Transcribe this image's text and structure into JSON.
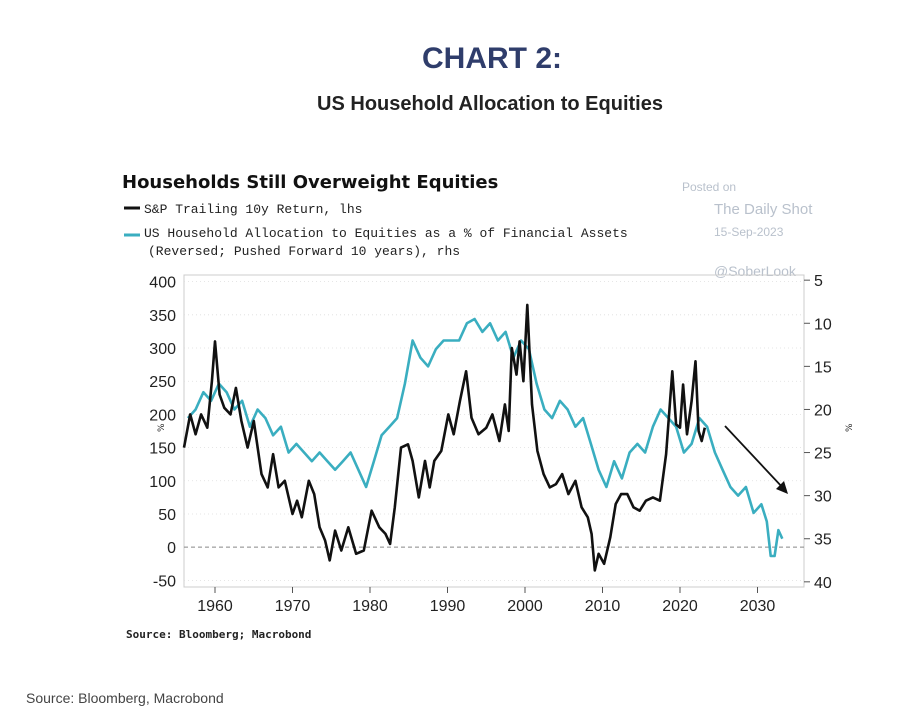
{
  "header": {
    "label": "CHART 2:",
    "title": "US Household Allocation to Equities"
  },
  "footer": {
    "source": "Source: Bloomberg, Macrobond"
  },
  "watermark": {
    "posted_on": "Posted on",
    "site": "The Daily Shot",
    "date": "15-Sep-2023",
    "handle": "@SoberLook"
  },
  "colors": {
    "lhs_series": "#111111",
    "rhs_series": "#3aaec0",
    "annotation": "#111111"
  },
  "chart_data": {
    "type": "line",
    "title": "Households Still Overweight Equities",
    "source": "Source: Bloomberg; Macrobond",
    "legend": [
      "S&P Trailing 10y Return, lhs",
      "US Household Allocation to Equities as a % of Financial Assets",
      "(Reversed; Pushed Forward 10 years), rhs"
    ],
    "legend_placement": "top-left",
    "xlabel": "",
    "ylabel": "%",
    "y2label": "%",
    "xlim": [
      1956,
      2036
    ],
    "ylim": [
      -60,
      410
    ],
    "y2lim": [
      4.4,
      40.6
    ],
    "y2_reversed": true,
    "x_ticks": [
      1960,
      1970,
      1980,
      1990,
      2000,
      2010,
      2020,
      2030
    ],
    "y_ticks": [
      -50,
      0,
      50,
      100,
      150,
      200,
      250,
      300,
      350,
      400
    ],
    "y2_ticks": [
      5,
      10,
      15,
      20,
      25,
      30,
      35,
      40
    ],
    "grid": "horizontal dotted",
    "zero_line": "dashed at 0",
    "annotation": "downward arrow from 2027 to 2036",
    "series": [
      {
        "name": "S&P Trailing 10y Return, lhs",
        "axis": "left",
        "x": [
          1956,
          1956.8,
          1957.5,
          1958.2,
          1959,
          1959.6,
          1960,
          1960.6,
          1961.2,
          1962,
          1962.7,
          1963.4,
          1964.2,
          1965,
          1966,
          1966.8,
          1967.5,
          1968.2,
          1969,
          1970,
          1970.6,
          1971.2,
          1972.1,
          1972.8,
          1973.5,
          1974.2,
          1974.8,
          1975.5,
          1976.3,
          1977.2,
          1978.2,
          1979.2,
          1980.2,
          1981.2,
          1982,
          1982.6,
          1983.2,
          1984,
          1984.9,
          1985.5,
          1986.3,
          1987.1,
          1987.7,
          1988.3,
          1989.2,
          1990.1,
          1990.8,
          1991.6,
          1992.4,
          1993.1,
          1994,
          1995,
          1995.8,
          1996.7,
          1997.4,
          1997.9,
          1998.3,
          1998.9,
          1999.3,
          1999.8,
          2000.3,
          2000.9,
          2001.6,
          2002.4,
          2003.2,
          2004,
          2004.8,
          2005.6,
          2006.5,
          2007.3,
          2008.1,
          2008.6,
          2009,
          2009.5,
          2010.2,
          2011,
          2011.7,
          2012.4,
          2013.2,
          2014,
          2014.8,
          2015.6,
          2016.5,
          2017.4,
          2018.2,
          2019,
          2019.5,
          2020,
          2020.4,
          2020.9,
          2021.5,
          2022,
          2022.4,
          2022.8,
          2023.2
        ],
        "values": [
          150,
          200,
          170,
          200,
          180,
          250,
          310,
          230,
          210,
          200,
          240,
          190,
          150,
          190,
          110,
          90,
          140,
          90,
          100,
          50,
          70,
          45,
          100,
          80,
          30,
          10,
          -20,
          25,
          -5,
          30,
          -10,
          -5,
          55,
          30,
          20,
          5,
          60,
          150,
          155,
          130,
          75,
          130,
          90,
          130,
          145,
          200,
          170,
          220,
          265,
          195,
          170,
          180,
          200,
          160,
          215,
          175,
          300,
          260,
          310,
          250,
          365,
          215,
          145,
          110,
          90,
          95,
          110,
          80,
          100,
          60,
          45,
          20,
          -35,
          -10,
          -25,
          15,
          65,
          80,
          80,
          60,
          55,
          70,
          75,
          70,
          140,
          265,
          185,
          180,
          245,
          170,
          220,
          280,
          175,
          160,
          180
        ]
      },
      {
        "name": "US Household Allocation to Equities as a % of Financial Assets (Reversed; Pushed Forward 10 years), rhs",
        "axis": "right",
        "x": [
          1956.5,
          1957.5,
          1958.5,
          1959.5,
          1960.5,
          1961.5,
          1962.5,
          1963.5,
          1964.5,
          1965.5,
          1966.5,
          1967.5,
          1968.5,
          1969.5,
          1970.5,
          1971.5,
          1972.5,
          1973.5,
          1974.5,
          1975.5,
          1976.5,
          1977.5,
          1978.5,
          1979.5,
          1980.5,
          1981.5,
          1982.5,
          1983.5,
          1984.5,
          1985.5,
          1986.5,
          1987.5,
          1988.5,
          1989.5,
          1990.5,
          1991.5,
          1992.5,
          1993.5,
          1994.5,
          1995.5,
          1996.5,
          1997.5,
          1998.5,
          1999.5,
          2000.5,
          2001.5,
          2002.5,
          2003.5,
          2004.5,
          2005.5,
          2006.5,
          2007.5,
          2008.5,
          2009.5,
          2010.5,
          2011.5,
          2012.5,
          2013.5,
          2014.5,
          2015.5,
          2016.5,
          2017.5,
          2018.5,
          2019.5,
          2020.5,
          2021.5,
          2022.5,
          2023.5,
          2024.5,
          2025.5,
          2026.5,
          2027.5,
          2028.5,
          2029.5,
          2030.5,
          2031.2,
          2031.7,
          2032.2,
          2032.7,
          2033.2
        ],
        "values": [
          21,
          20,
          18,
          19,
          17,
          18,
          20,
          19,
          22,
          20,
          21,
          23,
          22,
          25,
          24,
          25,
          26,
          25,
          26,
          27,
          26,
          25,
          27,
          29,
          26,
          23,
          22,
          21,
          17,
          12,
          14,
          15,
          13,
          12,
          12,
          12,
          10,
          9.5,
          11,
          10,
          12,
          11,
          14,
          12,
          13,
          17,
          20,
          21,
          19,
          20,
          22,
          21,
          24,
          27,
          29,
          26,
          28,
          25,
          24,
          25,
          22,
          20,
          21,
          22,
          25,
          24,
          21,
          22,
          25,
          27,
          29,
          30,
          29,
          32,
          31,
          33,
          37,
          37,
          34,
          35
        ]
      }
    ]
  },
  "ui_text": {
    "title": "Households Still Overweight Equities",
    "legend_lhs": "S&P Trailing 10y Return, lhs",
    "legend_rhs_1": "US Household Allocation to Equities as a % of Financial Assets",
    "legend_rhs_2": "(Reversed; Pushed Forward 10 years), rhs",
    "axis_unit_left": "%",
    "axis_unit_right": "%",
    "source": "Source: Bloomberg; Macrobond"
  }
}
